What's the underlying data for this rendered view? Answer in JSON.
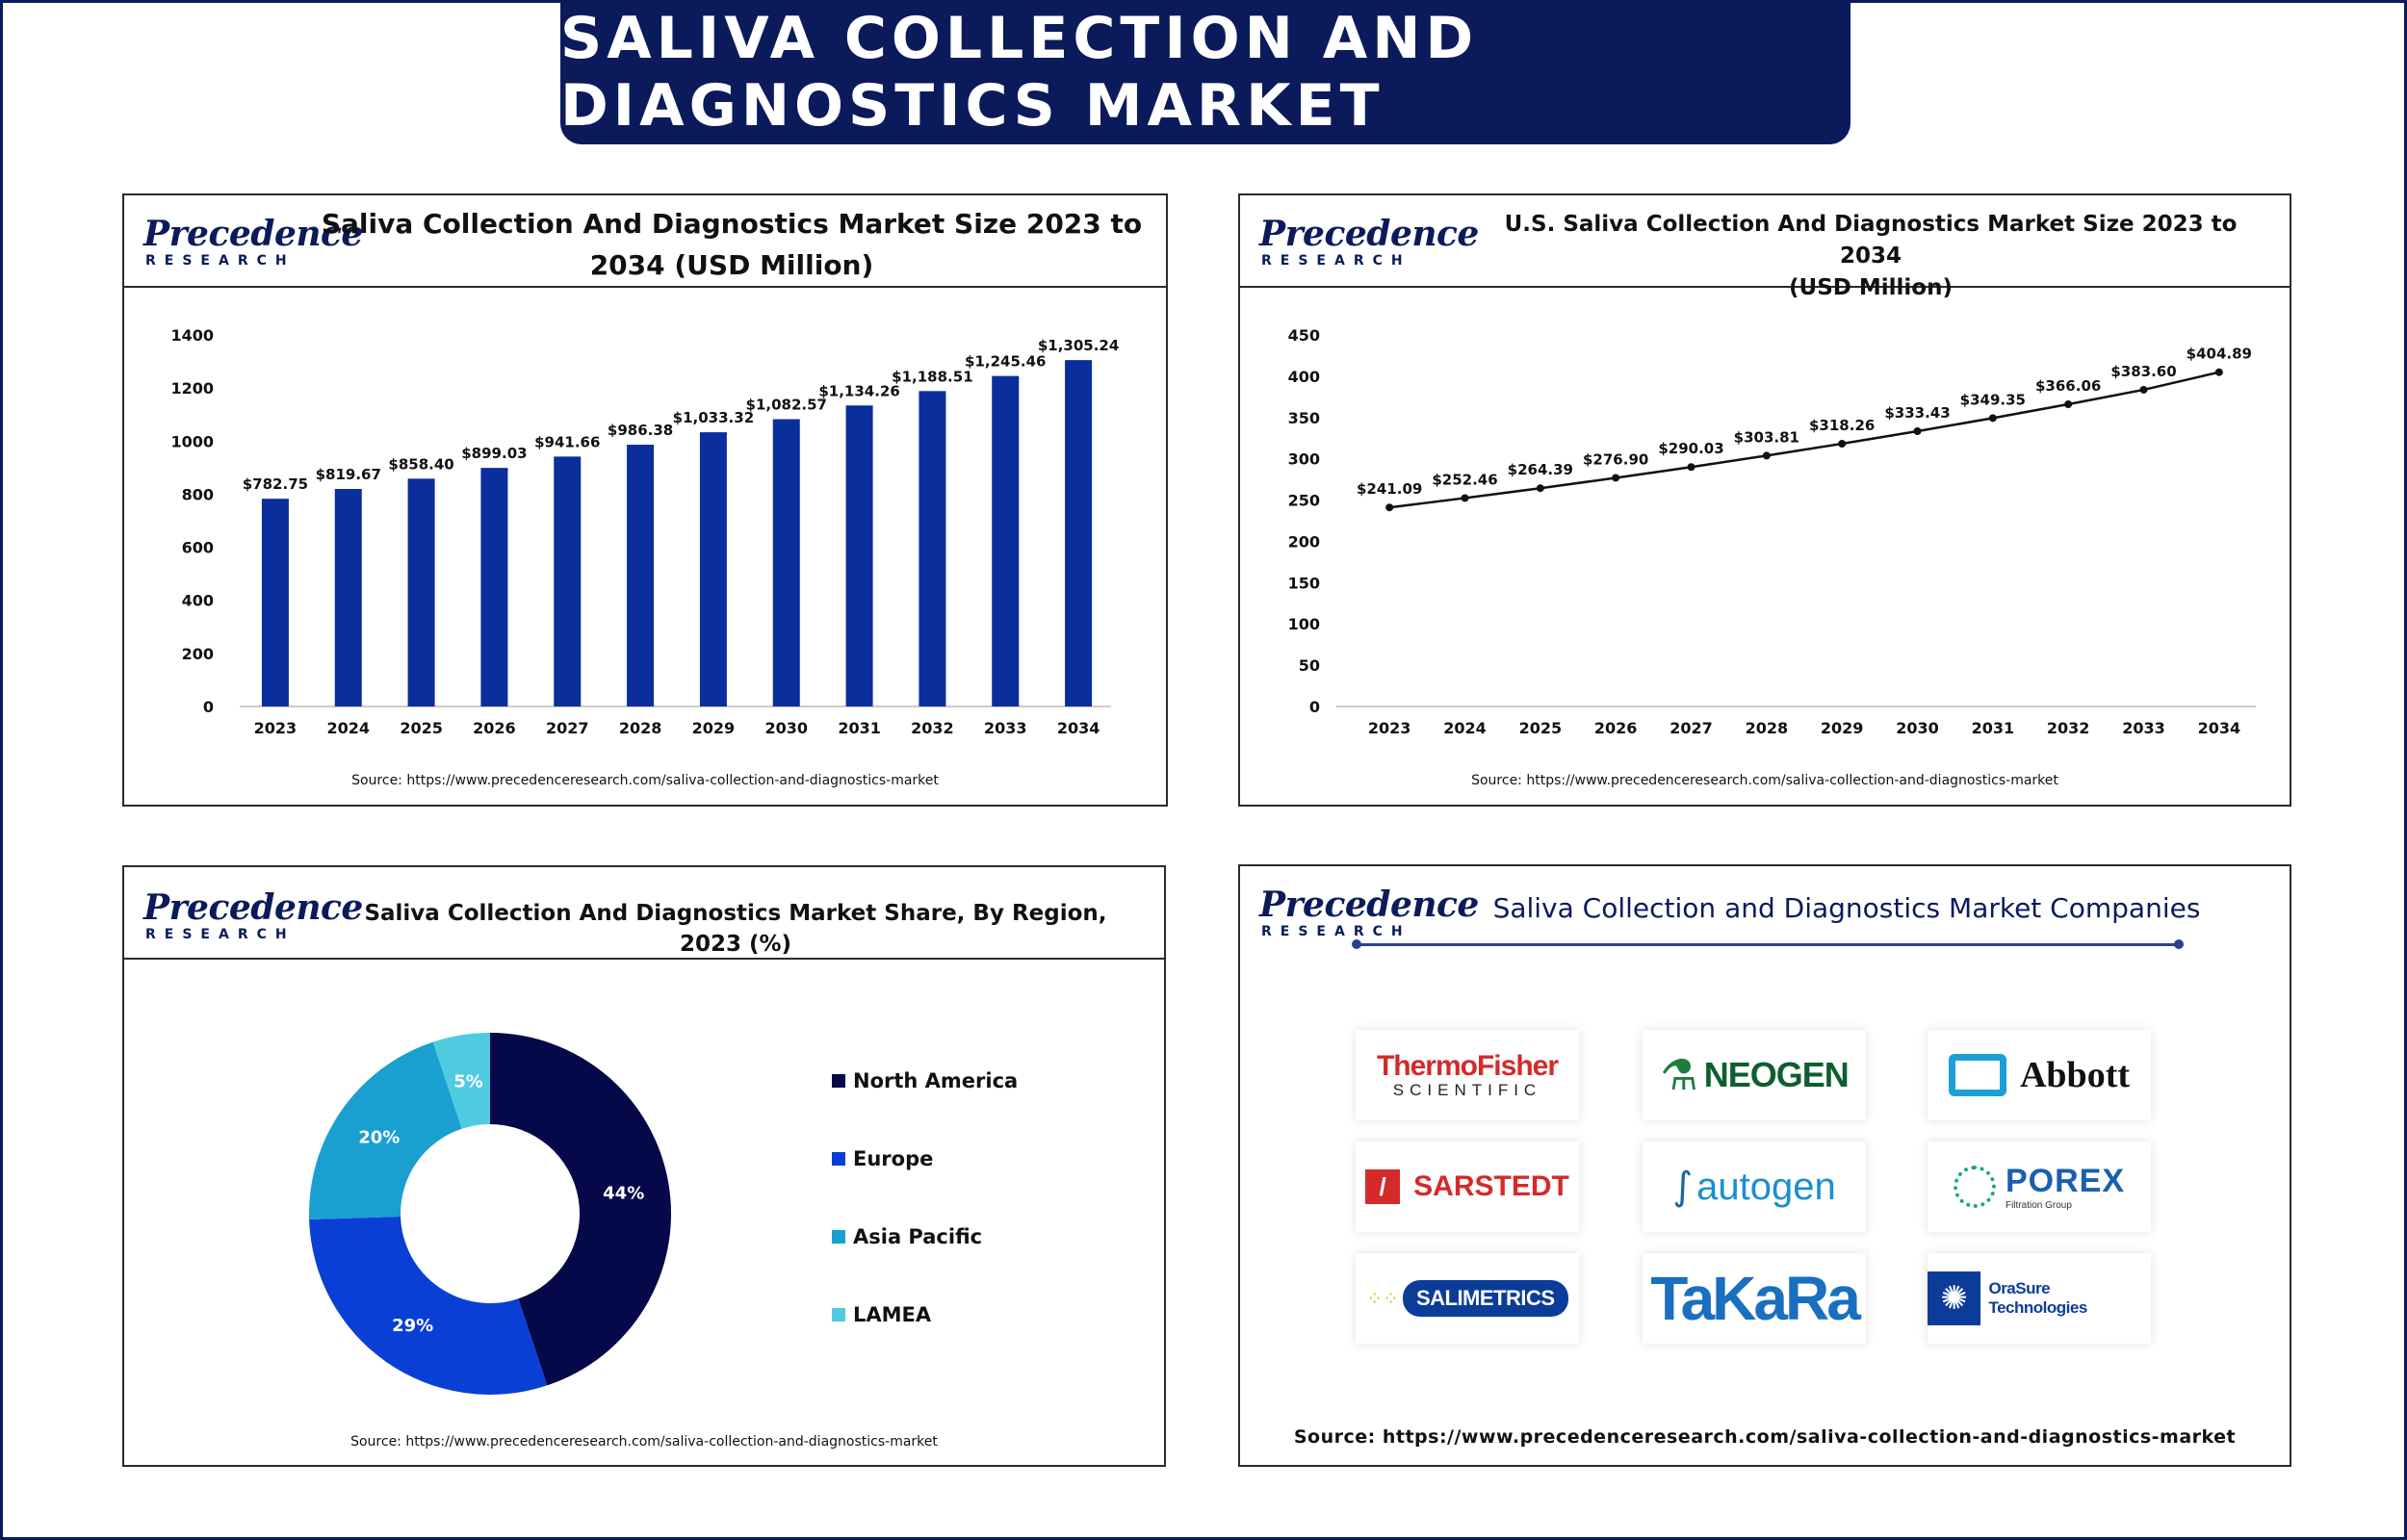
{
  "main_title": "SALIVA COLLECTION AND DIAGNOSTICS MARKET",
  "logo": {
    "word": "Precedence",
    "sub": "RESEARCH"
  },
  "source_text": "Source: https://www.precedenceresearch.com/saliva-collection-and-diagnostics-market",
  "colors": {
    "navy": "#0b1a5b",
    "bar": "#0a2e9c",
    "na": "#050849",
    "europe": "#0a3fd6",
    "apac": "#19a0d0",
    "lamea": "#4fcbe0"
  },
  "panels": {
    "market_size": {
      "title_line1": "Saliva Collection And Diagnostics Market Size 2023 to",
      "title_line2": "2034 (USD Million)"
    },
    "us_market": {
      "title_line1": "U.S. Saliva Collection And Diagnostics Market Size 2023 to 2034",
      "title_line2": "(USD Million)"
    },
    "region_share": {
      "title": "Saliva Collection And Diagnostics Market Share, By Region, 2023 (%)"
    },
    "companies": {
      "title": "Saliva Collection and Diagnostics Market Companies",
      "logos": [
        {
          "name": "ThermoFisher",
          "sub": "SCIENTIFIC",
          "icon": "thermofisher-logo"
        },
        {
          "name": "NEOGEN",
          "icon": "neogen-logo"
        },
        {
          "name": "Abbott",
          "icon": "abbott-logo"
        },
        {
          "name": "SARSTEDT",
          "icon": "sarstedt-logo"
        },
        {
          "name": "autogen",
          "icon": "autogen-logo"
        },
        {
          "name": "POREX",
          "sub": "Filtration Group",
          "icon": "porex-logo"
        },
        {
          "name": "SALIMETRICS",
          "icon": "salimetrics-logo"
        },
        {
          "name": "TaKaRa",
          "icon": "takara-logo"
        },
        {
          "name": "OraSure Technologies",
          "icon": "orasure-logo"
        }
      ]
    }
  },
  "chart_data": [
    {
      "type": "bar",
      "title": "Saliva Collection And Diagnostics Market Size 2023 to 2034 (USD Million)",
      "categories": [
        "2023",
        "2024",
        "2025",
        "2026",
        "2027",
        "2028",
        "2029",
        "2030",
        "2031",
        "2032",
        "2033",
        "2034"
      ],
      "values": [
        782.75,
        819.67,
        858.4,
        899.03,
        941.66,
        986.38,
        1033.32,
        1082.57,
        1134.26,
        1188.51,
        1245.46,
        1305.24
      ],
      "data_labels": [
        "$782.75",
        "$819.67",
        "$858.40",
        "$899.03",
        "$941.66",
        "$986.38",
        "$1,033.32",
        "$1,082.57",
        "$1,134.26",
        "$1,188.51",
        "$1,245.46",
        "$1,305.24"
      ],
      "yticks": [
        0,
        200,
        400,
        600,
        800,
        1000,
        1200,
        1400
      ],
      "ylim": [
        0,
        1400
      ],
      "grid": false
    },
    {
      "type": "line",
      "title": "U.S. Saliva Collection And Diagnostics Market Size 2023 to 2034 (USD Million)",
      "categories": [
        "2023",
        "2024",
        "2025",
        "2026",
        "2027",
        "2028",
        "2029",
        "2030",
        "2031",
        "2032",
        "2033",
        "2034"
      ],
      "values": [
        241.09,
        252.46,
        264.39,
        276.9,
        290.03,
        303.81,
        318.26,
        333.43,
        349.35,
        366.06,
        383.6,
        404.89
      ],
      "data_labels": [
        "$241.09",
        "$252.46",
        "$264.39",
        "$276.90",
        "$290.03",
        "$303.81",
        "$318.26",
        "$333.43",
        "$349.35",
        "$366.06",
        "$383.60",
        "$404.89"
      ],
      "yticks": [
        0,
        50,
        100,
        150,
        200,
        250,
        300,
        350,
        400,
        450
      ],
      "ylim": [
        0,
        450
      ],
      "grid": false
    },
    {
      "type": "pie",
      "title": "Saliva Collection And Diagnostics Market Share, By Region, 2023 (%)",
      "labels": [
        "North America",
        "Europe",
        "Asia Pacific",
        "LAMEA"
      ],
      "values": [
        44,
        29,
        20,
        5
      ],
      "data_labels": [
        "44%",
        "29%",
        "20%",
        "5%"
      ],
      "legend": "right"
    }
  ]
}
